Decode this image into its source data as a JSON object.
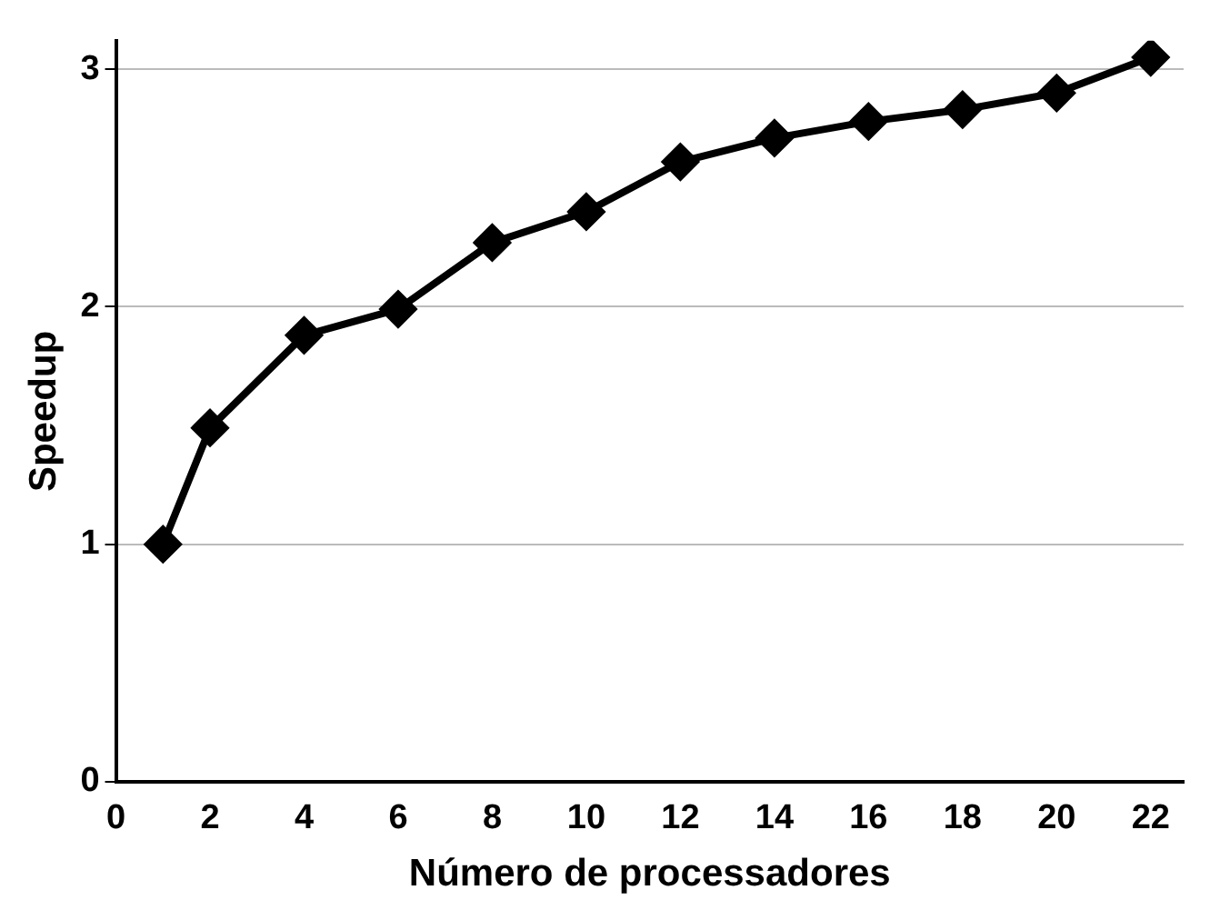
{
  "chart_data": {
    "type": "line",
    "xlabel": "Número de processadores",
    "ylabel": "Speedup",
    "x": [
      1,
      2,
      4,
      6,
      8,
      10,
      12,
      14,
      16,
      18,
      20,
      22
    ],
    "series": [
      {
        "color": "#000000",
        "values": [
          1.0,
          1.49,
          1.88,
          1.99,
          2.27,
          2.4,
          2.61,
          2.71,
          2.78,
          2.83,
          2.9,
          3.05
        ]
      }
    ],
    "xlim": [
      0,
      22.7
    ],
    "xticks": [
      0,
      2,
      4,
      6,
      8,
      10,
      12,
      14,
      16,
      18,
      20,
      22
    ],
    "ylim": [
      0,
      3.12
    ],
    "yticks": [
      0,
      1,
      2,
      3
    ],
    "grid": "y",
    "legend": false,
    "marker": "diamond",
    "line_style": "solid"
  }
}
